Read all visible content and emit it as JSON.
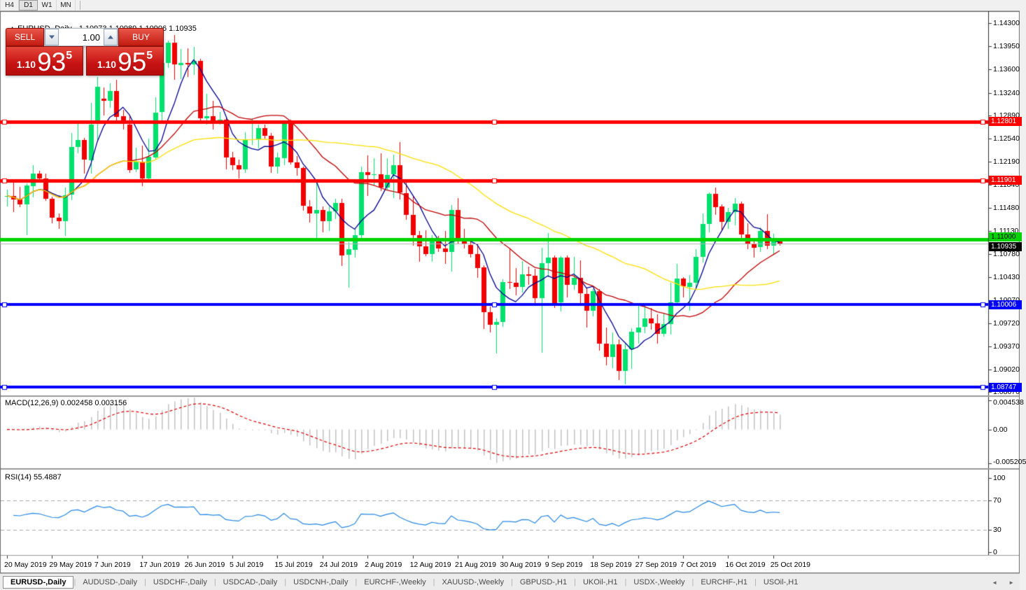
{
  "toolbar": {
    "timeframes": [
      "H4",
      "D1",
      "W1",
      "MN"
    ],
    "active": "D1"
  },
  "chart": {
    "symbol_label": "EURUSD-,Daily",
    "ohlc_label": "1.10973 1.10989 1.10906 1.10935",
    "collapse_icon": "▲"
  },
  "trade_panel": {
    "sell_label": "SELL",
    "buy_label": "BUY",
    "volume": "1.00",
    "sell": {
      "prefix": "1.10",
      "big": "93",
      "sup": "5"
    },
    "buy": {
      "prefix": "1.10",
      "big": "95",
      "sup": "5"
    }
  },
  "price_axis_ticks": [
    {
      "v": 1.143,
      "label": "1.14300"
    },
    {
      "v": 1.1395,
      "label": "1.13950"
    },
    {
      "v": 1.136,
      "label": "1.13600"
    },
    {
      "v": 1.1324,
      "label": "1.13240"
    },
    {
      "v": 1.1289,
      "label": "1.12890"
    },
    {
      "v": 1.1254,
      "label": "1.12540"
    },
    {
      "v": 1.1219,
      "label": "1.12190"
    },
    {
      "v": 1.1184,
      "label": "1.11840"
    },
    {
      "v": 1.1148,
      "label": "1.11480"
    },
    {
      "v": 1.1113,
      "label": "1.11130"
    },
    {
      "v": 1.1078,
      "label": "1.10780"
    },
    {
      "v": 1.1043,
      "label": "1.10430"
    },
    {
      "v": 1.1007,
      "label": "1.10070"
    },
    {
      "v": 1.0972,
      "label": "1.09720"
    },
    {
      "v": 1.0937,
      "label": "1.09370"
    },
    {
      "v": 1.0902,
      "label": "1.09020"
    },
    {
      "v": 1.0867,
      "label": "1.08670"
    }
  ],
  "hlines": [
    {
      "price": 1.12801,
      "label": "1.12801",
      "color": "#ff0000",
      "thickness": 5,
      "text_color": "#ffffff",
      "selected": true
    },
    {
      "price": 1.11901,
      "label": "1.11901",
      "color": "#ff0000",
      "thickness": 5,
      "text_color": "#ffffff",
      "selected": true
    },
    {
      "price": 1.11,
      "label": "1.11000",
      "color": "#00d400",
      "thickness": 5,
      "text_color": "#000000",
      "selected": false
    },
    {
      "price": 1.10006,
      "label": "1.10006",
      "color": "#0000ff",
      "thickness": 4,
      "text_color": "#ffffff",
      "selected": true
    },
    {
      "price": 1.08747,
      "label": "1.08747",
      "color": "#0000ff",
      "thickness": 4,
      "text_color": "#ffffff",
      "selected": true
    }
  ],
  "current_price": {
    "value": 1.10935,
    "label": "1.10935",
    "line_color": "#b4b4b4",
    "tag_bg": "#000000",
    "tag_fg": "#ffffff"
  },
  "colors": {
    "bull": "#00e26d",
    "bear": "#f20000",
    "background": "#ffffff",
    "axis_text": "#000000"
  },
  "chart_data": {
    "type": "candlestick",
    "symbol": "EURUSD-",
    "timeframe": "Daily",
    "current_bar": {
      "open": 1.10973,
      "high": 1.10989,
      "low": 1.10906,
      "close": 1.10935
    },
    "price_range": {
      "top": 1.14475,
      "bottom": 1.0862
    },
    "x_labels": [
      "20 May 2019",
      "29 May 2019",
      "7 Jun 2019",
      "17 Jun 2019",
      "26 Jun 2019",
      "5 Jul 2019",
      "15 Jul 2019",
      "24 Jul 2019",
      "2 Aug 2019",
      "12 Aug 2019",
      "21 Aug 2019",
      "30 Aug 2019",
      "9 Sep 2019",
      "18 Sep 2019",
      "27 Sep 2019",
      "7 Oct 2019",
      "16 Oct 2019",
      "25 Oct 2019"
    ],
    "bars_per_label": 7,
    "candles": [
      [
        1.1166,
        1.1176,
        1.115,
        1.1167
      ],
      [
        1.1167,
        1.1188,
        1.1142,
        1.1162
      ],
      [
        1.1162,
        1.118,
        1.1149,
        1.1153
      ],
      [
        1.1153,
        1.1186,
        1.1107,
        1.1182
      ],
      [
        1.1182,
        1.1213,
        1.1164,
        1.1201
      ],
      [
        1.1201,
        1.1205,
        1.1187,
        1.1193
      ],
      [
        1.1193,
        1.1201,
        1.1159,
        1.1162
      ],
      [
        1.1162,
        1.1165,
        1.1125,
        1.1133
      ],
      [
        1.1133,
        1.114,
        1.1116,
        1.1128
      ],
      [
        1.1128,
        1.1179,
        1.1106,
        1.1168
      ],
      [
        1.1168,
        1.1263,
        1.116,
        1.1241
      ],
      [
        1.1241,
        1.128,
        1.1232,
        1.1252
      ],
      [
        1.1252,
        1.1255,
        1.1201,
        1.1222
      ],
      [
        1.1222,
        1.1309,
        1.1201,
        1.1276
      ],
      [
        1.1276,
        1.1348,
        1.1251,
        1.1333
      ],
      [
        1.1315,
        1.1332,
        1.1289,
        1.1312
      ],
      [
        1.1312,
        1.1338,
        1.1301,
        1.1327
      ],
      [
        1.1327,
        1.1344,
        1.1282,
        1.1288
      ],
      [
        1.1288,
        1.1298,
        1.1268,
        1.1276
      ],
      [
        1.1276,
        1.129,
        1.1202,
        1.1207
      ],
      [
        1.1207,
        1.124,
        1.1203,
        1.1219
      ],
      [
        1.1219,
        1.1243,
        1.1181,
        1.1193
      ],
      [
        1.1193,
        1.1254,
        1.1187,
        1.1226
      ],
      [
        1.1226,
        1.1317,
        1.1222,
        1.1294
      ],
      [
        1.1294,
        1.1378,
        1.1282,
        1.1369
      ],
      [
        1.1369,
        1.1404,
        1.1362,
        1.14
      ],
      [
        1.14,
        1.1412,
        1.1344,
        1.1367
      ],
      [
        1.1367,
        1.1391,
        1.1345,
        1.137
      ],
      [
        1.137,
        1.1392,
        1.1348,
        1.1368
      ],
      [
        1.1368,
        1.1394,
        1.1351,
        1.1373
      ],
      [
        1.1373,
        1.1376,
        1.1281,
        1.1285
      ],
      [
        1.1285,
        1.1322,
        1.1275,
        1.1288
      ],
      [
        1.1288,
        1.1312,
        1.1268,
        1.1278
      ],
      [
        1.1278,
        1.1295,
        1.1276,
        1.1283
      ],
      [
        1.1283,
        1.1286,
        1.1207,
        1.1225
      ],
      [
        1.1225,
        1.1234,
        1.1206,
        1.1213
      ],
      [
        1.1213,
        1.1222,
        1.1193,
        1.1207
      ],
      [
        1.1207,
        1.1264,
        1.1202,
        1.1252
      ],
      [
        1.1252,
        1.1285,
        1.1244,
        1.1253
      ],
      [
        1.1253,
        1.1275,
        1.1239,
        1.127
      ],
      [
        1.127,
        1.1276,
        1.1254,
        1.1258
      ],
      [
        1.1258,
        1.1263,
        1.1202,
        1.1211
      ],
      [
        1.1211,
        1.1233,
        1.1201,
        1.1225
      ],
      [
        1.1225,
        1.1282,
        1.1213,
        1.1277
      ],
      [
        1.1277,
        1.1283,
        1.1215,
        1.1218
      ],
      [
        1.1218,
        1.1227,
        1.1198,
        1.1209
      ],
      [
        1.1209,
        1.1211,
        1.1144,
        1.1151
      ],
      [
        1.1151,
        1.116,
        1.1126,
        1.114
      ],
      [
        1.114,
        1.1187,
        1.1101,
        1.1145
      ],
      [
        1.1145,
        1.1151,
        1.1111,
        1.1128
      ],
      [
        1.1128,
        1.115,
        1.1113,
        1.1143
      ],
      [
        1.1143,
        1.1162,
        1.1131,
        1.1156
      ],
      [
        1.1156,
        1.1162,
        1.106,
        1.1076
      ],
      [
        1.1076,
        1.1096,
        1.1027,
        1.1085
      ],
      [
        1.1085,
        1.1116,
        1.1072,
        1.1107
      ],
      [
        1.1107,
        1.1211,
        1.1101,
        1.1203
      ],
      [
        1.1203,
        1.1228,
        1.1167,
        1.1199
      ],
      [
        1.1199,
        1.1224,
        1.1183,
        1.12
      ],
      [
        1.12,
        1.1232,
        1.1174,
        1.118
      ],
      [
        1.118,
        1.1224,
        1.1176,
        1.1199
      ],
      [
        1.1199,
        1.123,
        1.1163,
        1.1213
      ],
      [
        1.1213,
        1.1249,
        1.1161,
        1.1171
      ],
      [
        1.1171,
        1.1192,
        1.113,
        1.1138
      ],
      [
        1.1138,
        1.1166,
        1.1091,
        1.1107
      ],
      [
        1.1107,
        1.1113,
        1.1066,
        1.109
      ],
      [
        1.109,
        1.1114,
        1.1075,
        1.1078
      ],
      [
        1.1078,
        1.1107,
        1.1066,
        1.1099
      ],
      [
        1.1099,
        1.1106,
        1.1081,
        1.1086
      ],
      [
        1.1086,
        1.1113,
        1.1063,
        1.1081
      ],
      [
        1.1081,
        1.1153,
        1.1051,
        1.1145
      ],
      [
        1.1145,
        1.1163,
        1.1094,
        1.1101
      ],
      [
        1.1101,
        1.1116,
        1.1086,
        1.1092
      ],
      [
        1.1092,
        1.1098,
        1.1073,
        1.1078
      ],
      [
        1.1078,
        1.1094,
        1.1042,
        1.1057
      ],
      [
        1.1057,
        1.1061,
        1.0963,
        1.0989
      ],
      [
        1.0989,
        1.0998,
        1.0958,
        1.097
      ],
      [
        1.097,
        1.0979,
        1.0926,
        1.0974
      ],
      [
        1.0974,
        1.1039,
        1.0967,
        1.1035
      ],
      [
        1.1035,
        1.1085,
        1.1024,
        1.1034
      ],
      [
        1.1034,
        1.1056,
        1.1015,
        1.1028
      ],
      [
        1.1028,
        1.1067,
        1.1019,
        1.1047
      ],
      [
        1.1047,
        1.1059,
        1.1031,
        1.1045
      ],
      [
        1.1045,
        1.1055,
        1.0999,
        1.1011
      ],
      [
        1.1011,
        1.1087,
        1.0927,
        1.1064
      ],
      [
        1.1064,
        1.111,
        1.1043,
        1.1073
      ],
      [
        1.1073,
        1.1076,
        1.0996,
        1.1004
      ],
      [
        1.1004,
        1.1075,
        1.099,
        1.1072
      ],
      [
        1.1072,
        1.1076,
        1.1012,
        1.103
      ],
      [
        1.103,
        1.1074,
        1.1023,
        1.1041
      ],
      [
        1.1041,
        1.1068,
        1.1,
        1.1017
      ],
      [
        1.1017,
        1.1025,
        1.0966,
        1.0991
      ],
      [
        1.0991,
        1.1024,
        1.0983,
        1.1021
      ],
      [
        1.1021,
        1.1024,
        1.093,
        1.0941
      ],
      [
        1.0941,
        1.0966,
        1.0908,
        1.0921
      ],
      [
        1.0921,
        1.0958,
        1.0904,
        1.094
      ],
      [
        1.094,
        1.0948,
        1.0885,
        1.0899
      ],
      [
        1.0899,
        1.0941,
        1.0879,
        1.0932
      ],
      [
        1.0932,
        1.0965,
        1.0903,
        1.0959
      ],
      [
        1.0959,
        1.0999,
        1.0941,
        1.0966
      ],
      [
        1.0966,
        1.0999,
        1.0957,
        1.0979
      ],
      [
        1.0979,
        1.0996,
        1.0962,
        1.0972
      ],
      [
        1.0972,
        1.0986,
        1.0941,
        1.0956
      ],
      [
        1.0956,
        1.0988,
        1.0952,
        1.0971
      ],
      [
        1.0971,
        1.1034,
        1.0955,
        1.1004
      ],
      [
        1.1004,
        1.1063,
        1.1002,
        1.104
      ],
      [
        1.104,
        1.1043,
        1.1012,
        1.1028
      ],
      [
        1.1028,
        1.1046,
        1.0991,
        1.1034
      ],
      [
        1.1034,
        1.1085,
        1.1023,
        1.1074
      ],
      [
        1.1074,
        1.114,
        1.1065,
        1.1124
      ],
      [
        1.1124,
        1.1172,
        1.1111,
        1.117
      ],
      [
        1.117,
        1.1179,
        1.1138,
        1.115
      ],
      [
        1.115,
        1.1154,
        1.1113,
        1.1127
      ],
      [
        1.1127,
        1.1148,
        1.1116,
        1.1142
      ],
      [
        1.1142,
        1.1163,
        1.1122,
        1.1155
      ],
      [
        1.1155,
        1.1158,
        1.1102,
        1.1108
      ],
      [
        1.1108,
        1.1125,
        1.1085,
        1.1093
      ],
      [
        1.1093,
        1.11,
        1.1072,
        1.1088
      ],
      [
        1.1088,
        1.1118,
        1.1081,
        1.1113
      ],
      [
        1.1113,
        1.1139,
        1.1085,
        1.1091
      ],
      [
        1.1091,
        1.1109,
        1.1078,
        1.1097
      ],
      [
        1.10973,
        1.10989,
        1.10906,
        1.10935
      ]
    ],
    "moving_averages": [
      {
        "period": 6,
        "color": "#000090"
      },
      {
        "period": 20,
        "color": "#c00000"
      },
      {
        "period": 45,
        "color": "#ffdf00"
      }
    ],
    "macd": {
      "label": "MACD(12,26,9) 0.002458 0.003156",
      "fast": 12,
      "slow": 26,
      "signal": 9,
      "value": 0.002458,
      "signal_value": 0.003156,
      "scale_top": 0.004538,
      "scale_bottom": -0.005205,
      "axis_labels": [
        {
          "v": 0.004538,
          "label": "0.004538"
        },
        {
          "v": 0,
          "label": "0.00"
        },
        {
          "v": -0.005205,
          "label": "-0.005205"
        }
      ],
      "histogram_color": "#c4c4c4",
      "signal_color": "#e00000"
    },
    "rsi": {
      "label": "RSI(14) 55.4887",
      "period": 14,
      "current": 55.4887,
      "levels": [
        70,
        30
      ],
      "axis_labels": [
        {
          "v": 100,
          "label": "100"
        },
        {
          "v": 70,
          "label": "70"
        },
        {
          "v": 30,
          "label": "30"
        },
        {
          "v": 0,
          "label": "0"
        }
      ],
      "line_color": "#2688e8",
      "level_color": "#a8a8a8"
    }
  },
  "tabs": {
    "items": [
      {
        "label": "EURUSD-,Daily",
        "active": true
      },
      {
        "label": "AUDUSD-,Daily",
        "active": false
      },
      {
        "label": "USDCHF-,Daily",
        "active": false
      },
      {
        "label": "USDCAD-,Daily",
        "active": false
      },
      {
        "label": "USDCNH-,Daily",
        "active": false
      },
      {
        "label": "EURCHF-,Weekly",
        "active": false
      },
      {
        "label": "XAUUSD-,Weekly",
        "active": false
      },
      {
        "label": "GBPUSD-,H1",
        "active": false
      },
      {
        "label": "UKOil-,H1",
        "active": false
      },
      {
        "label": "USDX-,Weekly",
        "active": false
      },
      {
        "label": "EURCHF-,H1",
        "active": false
      },
      {
        "label": "USOil-,H1",
        "active": false
      }
    ],
    "left_arrow": "◄",
    "right_arrow": "►"
  }
}
